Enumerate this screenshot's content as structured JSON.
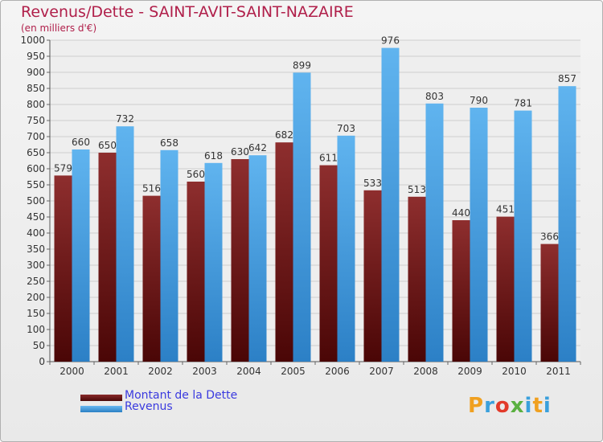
{
  "header": {
    "title": "Revenus/Dette - SAINT-AVIT-SAINT-NAZAIRE",
    "subtitle": "(en milliers d'€)"
  },
  "colors": {
    "dette": "#7a1c1c",
    "revenus": "#4aa3e6",
    "title": "#b01f4a",
    "legend_text": "#3a3adf"
  },
  "logo": {
    "letters": [
      "P",
      "r",
      "o",
      "x",
      "i",
      "t",
      "i"
    ],
    "colors": [
      "#f0a020",
      "#3aa0dc",
      "#e23a2a",
      "#5ab040",
      "#3aa0dc",
      "#f0a020",
      "#3aa0dc"
    ]
  },
  "chart_data": {
    "type": "bar",
    "title": "Revenus/Dette - SAINT-AVIT-SAINT-NAZAIRE",
    "subtitle": "(en milliers d'€)",
    "categories": [
      "2000",
      "2001",
      "2002",
      "2003",
      "2004",
      "2005",
      "2006",
      "2007",
      "2008",
      "2009",
      "2010",
      "2011"
    ],
    "series": [
      {
        "name": "Montant de la Dette",
        "values": [
          579,
          650,
          516,
          560,
          630,
          682,
          611,
          533,
          513,
          440,
          451,
          366
        ]
      },
      {
        "name": "Revenus",
        "values": [
          660,
          732,
          658,
          618,
          642,
          899,
          703,
          976,
          803,
          790,
          781,
          857
        ]
      }
    ],
    "ylim": [
      0,
      1000
    ],
    "ytick_step": 50,
    "yticks": [
      "0",
      "50",
      "100",
      "150",
      "200",
      "250",
      "300",
      "350",
      "400",
      "450",
      "500",
      "550",
      "600",
      "650",
      "700",
      "750",
      "800",
      "850",
      "900",
      "950",
      "1000"
    ],
    "grid": true,
    "legend_position": "bottom-left"
  }
}
